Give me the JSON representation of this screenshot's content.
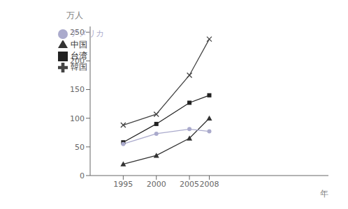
{
  "chart_data": {
    "type": "line",
    "x": [
      1995,
      2000,
      2005,
      2008
    ],
    "series": [
      {
        "name": "韓国",
        "color": "#444444",
        "marker": "x",
        "values": [
          88,
          107,
          175,
          238
        ]
      },
      {
        "name": "台湾",
        "color": "#222222",
        "marker": "square",
        "values": [
          58,
          90,
          127,
          140
        ]
      },
      {
        "name": "中国",
        "color": "#333333",
        "marker": "triangle",
        "values": [
          20,
          35,
          65,
          100
        ]
      },
      {
        "name": "アメリカ",
        "color": "#aaaacc",
        "marker": "circle",
        "values": [
          55,
          73,
          81,
          77
        ]
      }
    ],
    "ylabel": "万人",
    "xlabel": "年",
    "xlim": [
      1990,
      2026
    ],
    "xticks": [
      1995,
      2000,
      2005,
      2008
    ],
    "ylim": [
      0,
      260
    ],
    "yticks": [
      0,
      50,
      100,
      150,
      200,
      250
    ],
    "grid": false,
    "legend": "upper left"
  }
}
